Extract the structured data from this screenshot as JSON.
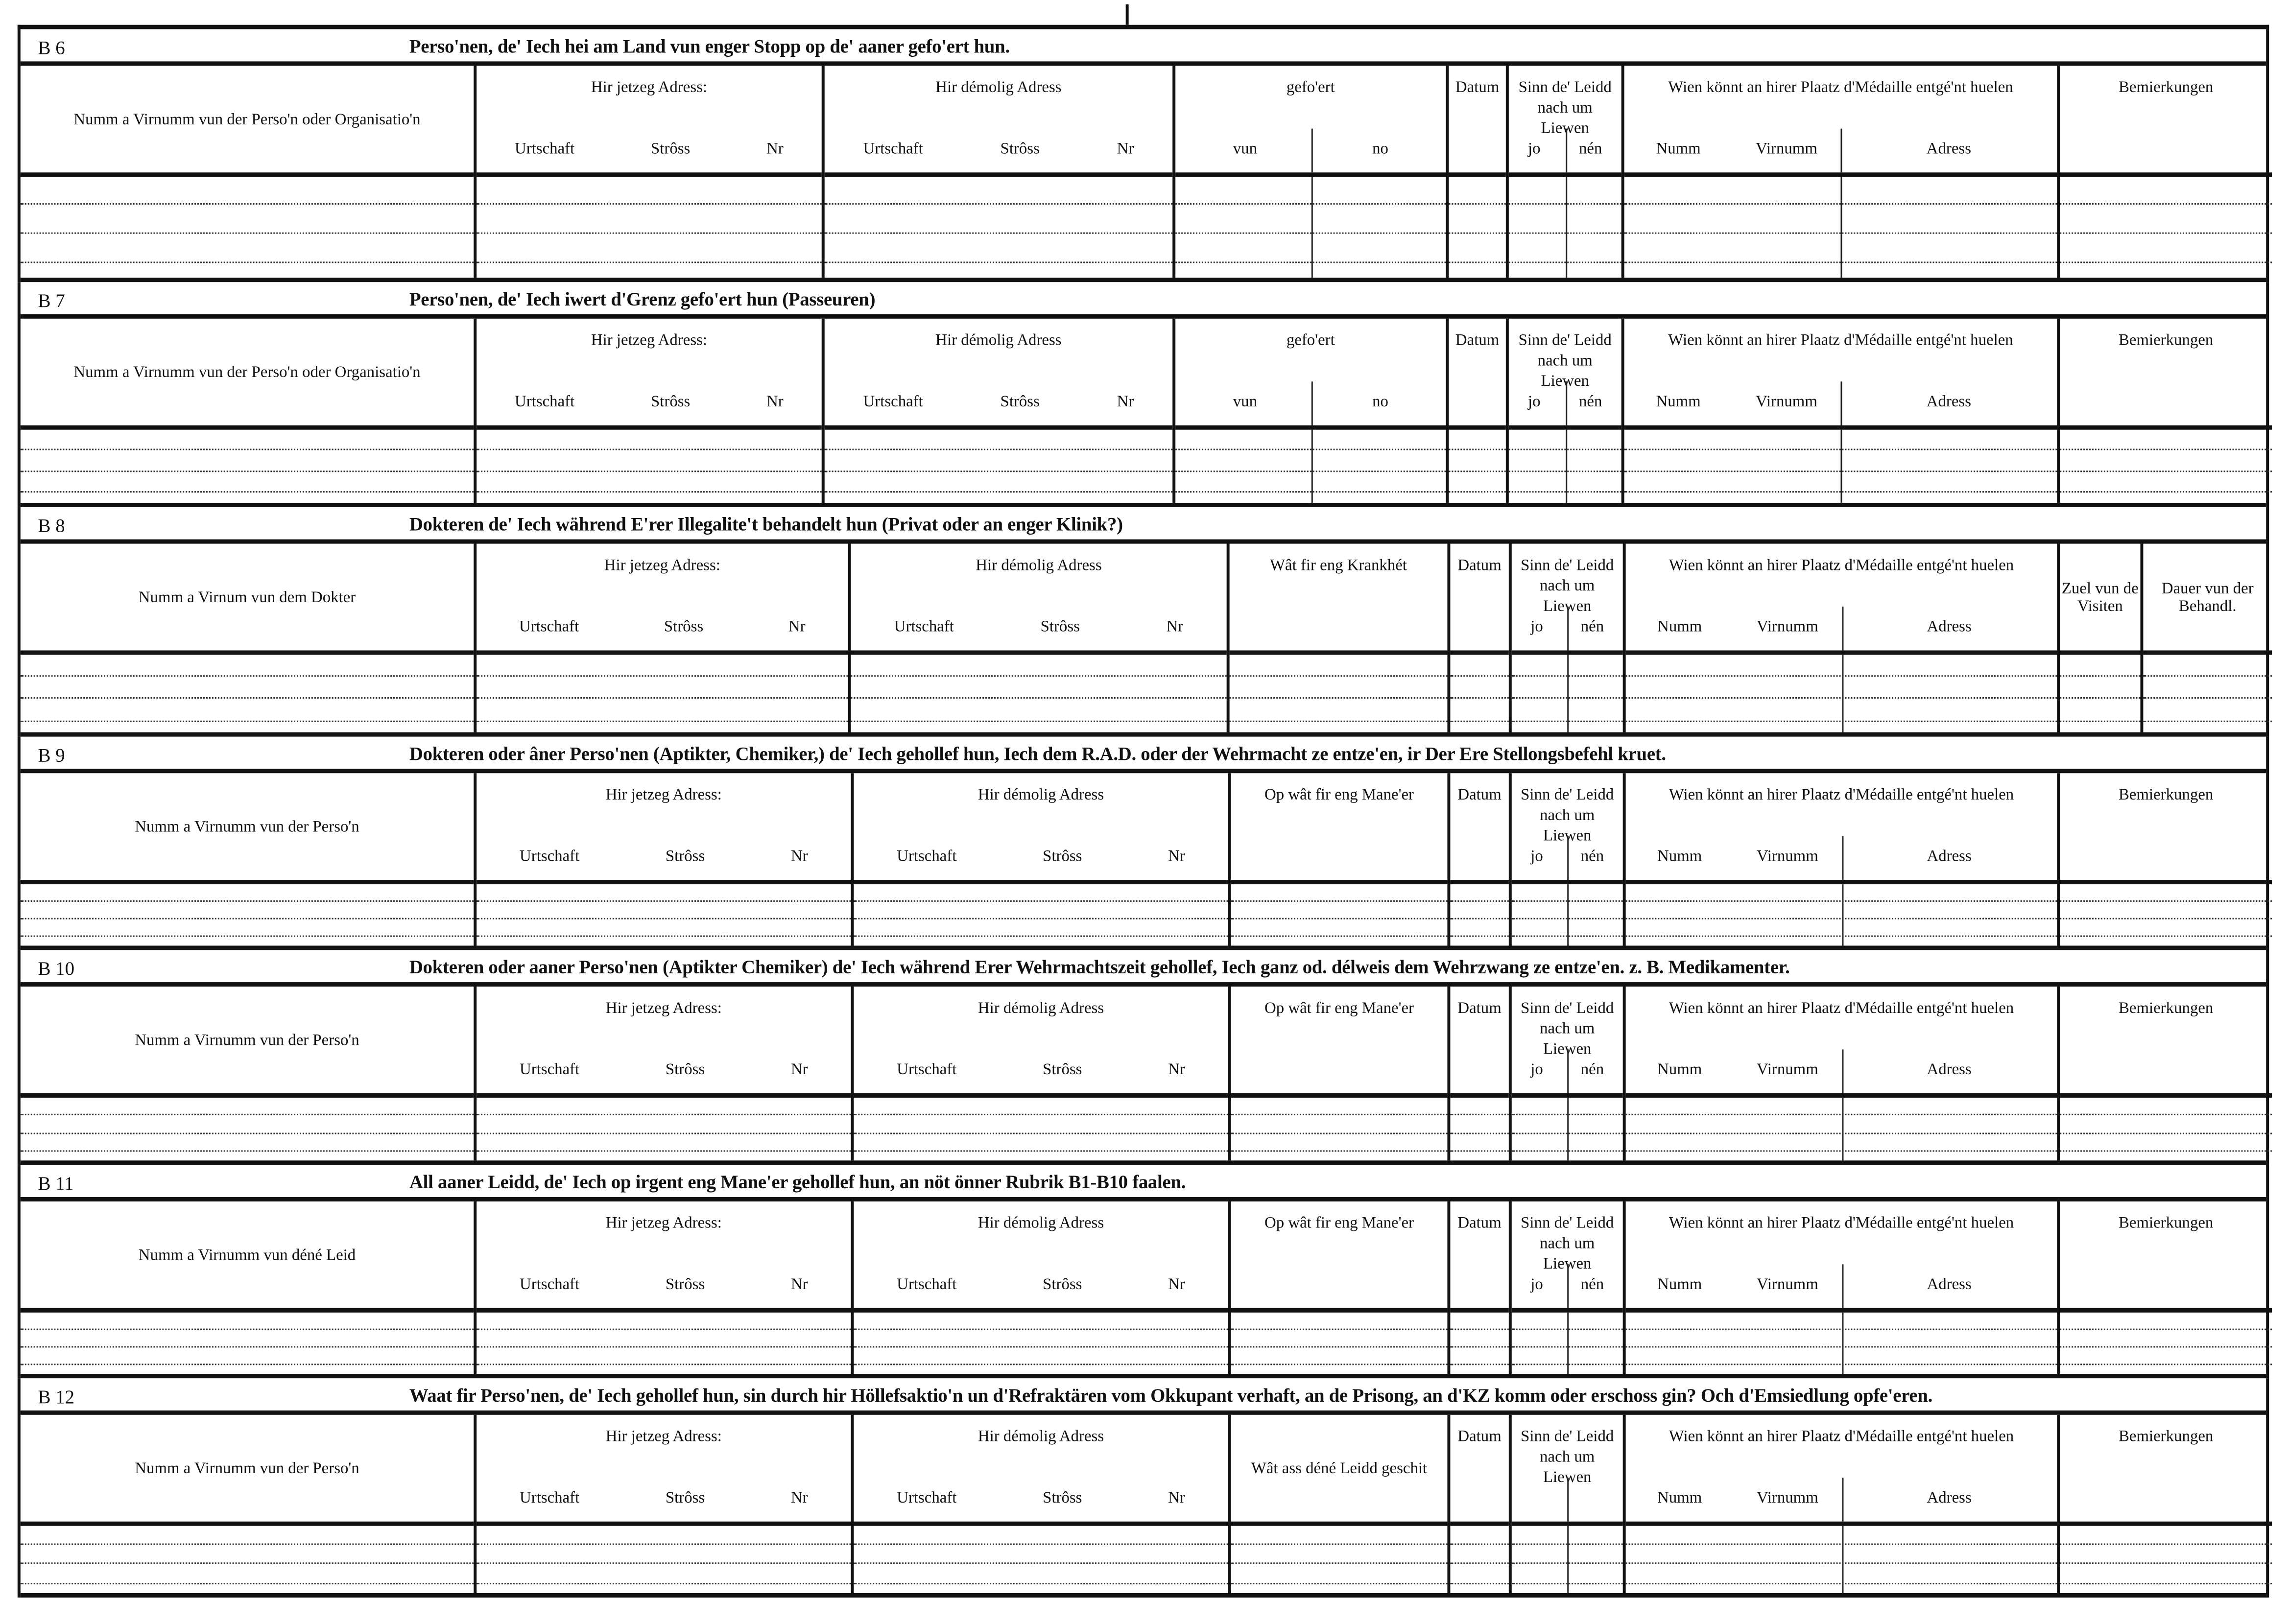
{
  "sections": [
    {
      "code": "B 6",
      "title": "Perso'nen, de' Iech hei am Land vun enger Stopp  op de' aaner gefo'ert hun.",
      "columns": [
        {
          "type": "mid",
          "label": "Numm a Virnumm vun der Perso'n oder Organisatio'n"
        },
        {
          "type": "addr",
          "label": "Hir jetzeg Adress:",
          "subs": [
            "Urtschaft",
            "Strôss",
            "Nr"
          ]
        },
        {
          "type": "addr",
          "label": "Hir démolig Adress",
          "subs": [
            "Urtschaft",
            "Strôss",
            "Nr"
          ]
        },
        {
          "type": "split",
          "label": "gefo'ert",
          "subs": [
            "vun",
            "no"
          ]
        },
        {
          "type": "top",
          "label": "Datum"
        },
        {
          "type": "split",
          "label": "Sinn  de' Leidd  nach um  Liewen",
          "subs": [
            "jo",
            "nén"
          ]
        },
        {
          "type": "wien",
          "label": "Wien  könnt  an  hirer  Plaatz  d'Médaille entgé'nt huelen",
          "subs": [
            "Numm",
            "Virnumm",
            "Adress"
          ]
        },
        {
          "type": "top",
          "label": "Bemierkungen"
        }
      ]
    },
    {
      "code": "B 7",
      "title": "Perso'nen, de' Iech iwert d'Grenz gefo'ert hun (Passeuren)",
      "columns": [
        {
          "type": "mid",
          "label": "Numm a Virnumm vun der Perso'n oder Organisatio'n"
        },
        {
          "type": "addr",
          "label": "Hir jetzeg Adress:",
          "subs": [
            "Urtschaft",
            "Strôss",
            "Nr"
          ]
        },
        {
          "type": "addr",
          "label": "Hir démolig Adress",
          "subs": [
            "Urtschaft",
            "Strôss",
            "Nr"
          ]
        },
        {
          "type": "split",
          "label": "gefo'ert",
          "subs": [
            "vun",
            "no"
          ]
        },
        {
          "type": "top",
          "label": "Datum"
        },
        {
          "type": "split",
          "label": "Sinn  de' Leidd  nach um  Liewen",
          "subs": [
            "jo",
            "nén"
          ]
        },
        {
          "type": "wien",
          "label": "Wien  könnt  an  hirer  Plaatz  d'Médaille entgé'nt huelen",
          "subs": [
            "Numm",
            "Virnumm",
            "Adress"
          ]
        },
        {
          "type": "top",
          "label": "Bemierkungen"
        }
      ]
    },
    {
      "code": "B 8",
      "title": "Dokteren de' Iech während E'rer Illegalite't behandelt hun (Privat  oder an enger Klinik?)",
      "columns": [
        {
          "type": "mid",
          "label": "Numm a Virnum vun dem Dokter"
        },
        {
          "type": "addr",
          "label": "Hir jetzeg Adress:",
          "subs": [
            "Urtschaft",
            "Strôss",
            "Nr"
          ]
        },
        {
          "type": "addr",
          "label": "Hir démolig Adress",
          "subs": [
            "Urtschaft",
            "Strôss",
            "Nr"
          ]
        },
        {
          "type": "top",
          "label": "Wât  fir  eng  Krankhét"
        },
        {
          "type": "top",
          "label": "Datum"
        },
        {
          "type": "split",
          "label": "Sinn  de' Leidd  nach um  Liewen",
          "subs": [
            "jo",
            "nén"
          ]
        },
        {
          "type": "wien",
          "label": "Wien  könnt  an  hirer  Plaatz  d'Médaille entgé'nt huelen",
          "subs": [
            "Numm",
            "Virnumm",
            "Adress"
          ]
        },
        {
          "type": "mid",
          "label": "Zuel  vun de  Visiten"
        },
        {
          "type": "mid",
          "label": "Dauer  vun der  Behandl."
        }
      ]
    },
    {
      "code": "B 9",
      "title": "Dokteren oder âner Perso'nen (Aptikter, Chemiker,) de' Iech gehollef hun, Iech dem R.A.D. oder der  Wehrmacht  ze  entze'en,  ir  Der  Ere  Stellongsbefehl  kruet.",
      "columns": [
        {
          "type": "mid",
          "label": "Numm  a  Virnumm  vun  der  Perso'n"
        },
        {
          "type": "addr",
          "label": "Hir jetzeg Adress:",
          "subs": [
            "Urtschaft",
            "Strôss",
            "Nr"
          ]
        },
        {
          "type": "addr",
          "label": "Hir démolig Adress",
          "subs": [
            "Urtschaft",
            "Strôss",
            "Nr"
          ]
        },
        {
          "type": "top",
          "label": "Op  wât  fir  eng  Mane'er"
        },
        {
          "type": "top",
          "label": "Datum"
        },
        {
          "type": "split",
          "label": "Sinn  de' Leidd  nach um  Liewen",
          "subs": [
            "jo",
            "nén"
          ]
        },
        {
          "type": "wien",
          "label": "Wien  könnt  an  hirer  Plaatz  d'Médaille entgé'nt huelen",
          "subs": [
            "Numm",
            "Virnumm",
            "Adress"
          ]
        },
        {
          "type": "top",
          "label": "Bemierkungen"
        }
      ]
    },
    {
      "code": "B 10",
      "title": "Dokteren oder aaner Perso'nen (Aptikter Chemiker) de' Iech während Erer Wehrmachtszeit gehollef, Iech ganz od. délweis dem Wehrzwang ze entze'en. z. B. Medikamenter.",
      "columns": [
        {
          "type": "mid",
          "label": "Numm  a  Virnumm  vun  der  Perso'n"
        },
        {
          "type": "addr",
          "label": "Hir jetzeg Adress:",
          "subs": [
            "Urtschaft",
            "Strôss",
            "Nr"
          ]
        },
        {
          "type": "addr",
          "label": "Hir démolig Adress",
          "subs": [
            "Urtschaft",
            "Strôss",
            "Nr"
          ]
        },
        {
          "type": "top",
          "label": "Op  wât  fir  eng  Mane'er"
        },
        {
          "type": "top",
          "label": "Datum"
        },
        {
          "type": "split",
          "label": "Sinn  de' Leidd  nach um  Liewen",
          "subs": [
            "jo",
            "nén"
          ]
        },
        {
          "type": "wien",
          "label": "Wien  könnt  an  hirer  Plaatz  d'Médaille entgé'nt huelen",
          "subs": [
            "Numm",
            "Virnumm",
            "Adress"
          ]
        },
        {
          "type": "top",
          "label": "Bemierkungen"
        }
      ]
    },
    {
      "code": "B 11",
      "title": "All aaner Leidd, de' Iech op irgent eng Mane'er  gehollef hun, an nöt önner Rubrik B1-B10 faalen.",
      "columns": [
        {
          "type": "mid",
          "label": "Numm  a  Virnumm  vun  déné  Leid"
        },
        {
          "type": "addr",
          "label": "Hir jetzeg Adress:",
          "subs": [
            "Urtschaft",
            "Strôss",
            "Nr"
          ]
        },
        {
          "type": "addr",
          "label": "Hir démolig Adress",
          "subs": [
            "Urtschaft",
            "Strôss",
            "Nr"
          ]
        },
        {
          "type": "top",
          "label": "Op  wât  fir  eng  Mane'er"
        },
        {
          "type": "top",
          "label": "Datum"
        },
        {
          "type": "split",
          "label": "Sinn  de' Leidd  nach um  Liewen",
          "subs": [
            "jo",
            "nén"
          ]
        },
        {
          "type": "wien",
          "label": "Wien  könnt  an  hirer  Plaatz  d'Médaille entgé'nt huelen",
          "subs": [
            "Numm",
            "Virnumm",
            "Adress"
          ]
        },
        {
          "type": "top",
          "label": "Bemierkungen"
        }
      ]
    },
    {
      "code": "B 12",
      "title": "Waat fir Perso'nen, de' Iech gehollef hun, sin durch hir Höllefsaktio'n un d'Refraktären vom Okkupant verhaft, an de Prisong, an d'KZ komm oder  erschoss gin? Och d'Emsiedlung opfe'eren.",
      "columns": [
        {
          "type": "mid",
          "label": "Numm  a  Virnumm  vun  der  Perso'n"
        },
        {
          "type": "addr",
          "label": "Hir jetzeg Adress:",
          "subs": [
            "Urtschaft",
            "Strôss",
            "Nr"
          ]
        },
        {
          "type": "addr",
          "label": "Hir démolig Adress",
          "subs": [
            "Urtschaft",
            "Strôss",
            "Nr"
          ]
        },
        {
          "type": "mid",
          "label": "Wât  ass  déné  Leidd geschit"
        },
        {
          "type": "top",
          "label": "Datum"
        },
        {
          "type": "split",
          "label": "Sinn  de' Leidd  nach um  Liewen",
          "subs": []
        },
        {
          "type": "wien",
          "label": "Wien  könnt  an  hirer  Plaatz  d'Médaille entgé'nt huelen",
          "subs": [
            "Numm",
            "Virnumm",
            "Adress"
          ]
        },
        {
          "type": "top",
          "label": "Bemierkungen"
        }
      ]
    }
  ]
}
